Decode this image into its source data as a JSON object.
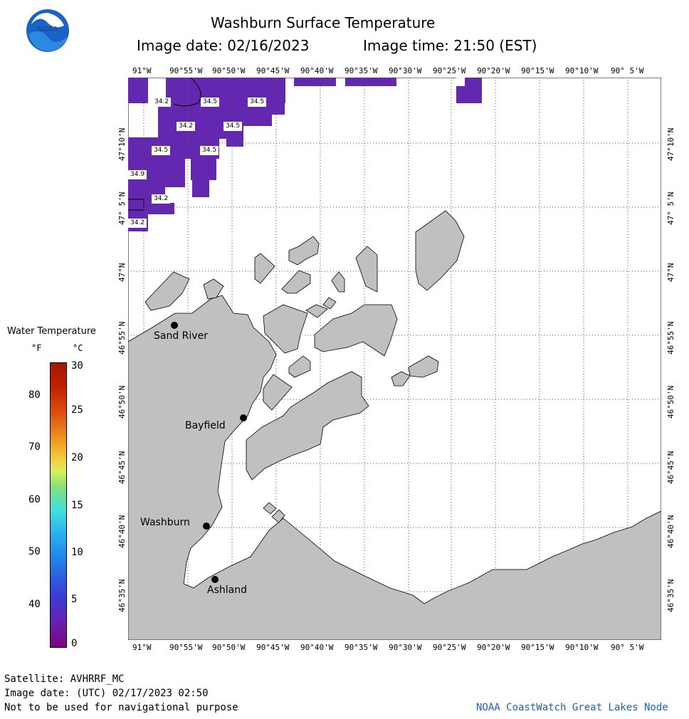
{
  "title": "Washburn Surface Temperature",
  "image_date_line": "Image date: 02/16/2023",
  "image_time_line": "Image time: 21:50 (EST)",
  "logo_text": "NOAA",
  "lon_ticks": [
    "91°W",
    "90°55'W",
    "90°50'W",
    "90°45'W",
    "90°40'W",
    "90°35'W",
    "90°30'W",
    "90°25'W",
    "90°20'W",
    "90°15'W",
    "90°10'W",
    "90° 5'W"
  ],
  "lat_ticks": [
    "47°10'N",
    "47° 5'N",
    "47°N",
    "46°55'N",
    "46°50'N",
    "46°45'N",
    "46°40'N",
    "46°35'N"
  ],
  "legend": {
    "title": "Water Temperature",
    "unit_f": "°F",
    "unit_c": "°C",
    "f_ticks": [
      "80",
      "70",
      "60",
      "50",
      "40"
    ],
    "c_ticks": [
      "30",
      "25",
      "20",
      "15",
      "10",
      "5",
      "0"
    ]
  },
  "places": [
    {
      "name": "Sand River"
    },
    {
      "name": "Bayfield"
    },
    {
      "name": "Washburn"
    },
    {
      "name": "Ashland"
    }
  ],
  "temp_labels": [
    "34.2",
    "34.5",
    "34.5",
    "34.2",
    "34.5",
    "34.5",
    "34.5",
    "34.9",
    "34.2",
    "34.2"
  ],
  "footer": {
    "satellite": "Satellite: AVHRRF_MC",
    "utc_date": "Image date: (UTC) 02/17/2023  02:50",
    "disclaimer": "Not to be used for navigational purpose",
    "credit": "NOAA CoastWatch Great Lakes Node"
  },
  "colors": {
    "land": "#c0c0c0",
    "water_data": "#6427b0",
    "credit": "#1f5fbf"
  }
}
